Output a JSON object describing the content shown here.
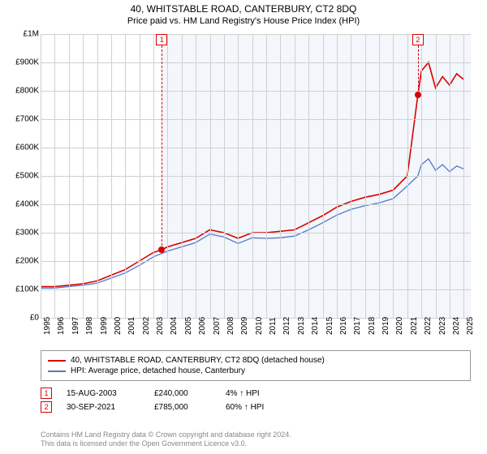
{
  "title": "40, WHITSTABLE ROAD, CANTERBURY, CT2 8DQ",
  "subtitle": "Price paid vs. HM Land Registry's House Price Index (HPI)",
  "chart": {
    "type": "line",
    "background_color": "#ffffff",
    "shade_color": "#f3f6fb",
    "grid_color": "#d0d0d0",
    "xlim": [
      1995,
      2025.5
    ],
    "ylim": [
      0,
      1000000
    ],
    "ytick_step": 100000,
    "yticks": [
      "£0",
      "£100K",
      "£200K",
      "£300K",
      "£400K",
      "£500K",
      "£600K",
      "£700K",
      "£800K",
      "£900K",
      "£1M"
    ],
    "xticks": [
      1995,
      1996,
      1997,
      1998,
      1999,
      2000,
      2001,
      2002,
      2003,
      2004,
      2005,
      2006,
      2007,
      2008,
      2009,
      2010,
      2011,
      2012,
      2013,
      2014,
      2015,
      2016,
      2017,
      2018,
      2019,
      2020,
      2021,
      2022,
      2023,
      2024,
      2025
    ],
    "shade_start_x": 2003.6,
    "series": [
      {
        "name": "property",
        "label": "40, WHITSTABLE ROAD, CANTERBURY, CT2 8DQ (detached house)",
        "color": "#d80000",
        "line_width": 1.6,
        "data": [
          [
            1995,
            110000
          ],
          [
            1996,
            110000
          ],
          [
            1997,
            115000
          ],
          [
            1998,
            120000
          ],
          [
            1999,
            130000
          ],
          [
            2000,
            150000
          ],
          [
            2001,
            170000
          ],
          [
            2002,
            200000
          ],
          [
            2003,
            230000
          ],
          [
            2003.6,
            240000
          ],
          [
            2004,
            250000
          ],
          [
            2005,
            265000
          ],
          [
            2006,
            280000
          ],
          [
            2007,
            310000
          ],
          [
            2008,
            300000
          ],
          [
            2009,
            280000
          ],
          [
            2010,
            300000
          ],
          [
            2011,
            300000
          ],
          [
            2012,
            305000
          ],
          [
            2013,
            310000
          ],
          [
            2014,
            335000
          ],
          [
            2015,
            360000
          ],
          [
            2016,
            390000
          ],
          [
            2017,
            410000
          ],
          [
            2018,
            425000
          ],
          [
            2019,
            435000
          ],
          [
            2020,
            450000
          ],
          [
            2021,
            500000
          ],
          [
            2021.75,
            785000
          ],
          [
            2022,
            870000
          ],
          [
            2022.5,
            900000
          ],
          [
            2023,
            810000
          ],
          [
            2023.5,
            850000
          ],
          [
            2024,
            820000
          ],
          [
            2024.5,
            860000
          ],
          [
            2025,
            840000
          ]
        ]
      },
      {
        "name": "hpi",
        "label": "HPI: Average price, detached house, Canterbury",
        "color": "#5078c8",
        "line_width": 1.3,
        "data": [
          [
            1995,
            105000
          ],
          [
            1996,
            105000
          ],
          [
            1997,
            110000
          ],
          [
            1998,
            115000
          ],
          [
            1999,
            122000
          ],
          [
            2000,
            140000
          ],
          [
            2001,
            158000
          ],
          [
            2002,
            185000
          ],
          [
            2003,
            215000
          ],
          [
            2004,
            235000
          ],
          [
            2005,
            250000
          ],
          [
            2006,
            265000
          ],
          [
            2007,
            295000
          ],
          [
            2008,
            285000
          ],
          [
            2009,
            262000
          ],
          [
            2010,
            282000
          ],
          [
            2011,
            280000
          ],
          [
            2012,
            282000
          ],
          [
            2013,
            288000
          ],
          [
            2014,
            310000
          ],
          [
            2015,
            335000
          ],
          [
            2016,
            362000
          ],
          [
            2017,
            382000
          ],
          [
            2018,
            395000
          ],
          [
            2019,
            405000
          ],
          [
            2020,
            420000
          ],
          [
            2021,
            465000
          ],
          [
            2021.75,
            500000
          ],
          [
            2022,
            540000
          ],
          [
            2022.5,
            560000
          ],
          [
            2023,
            520000
          ],
          [
            2023.5,
            540000
          ],
          [
            2024,
            515000
          ],
          [
            2024.5,
            535000
          ],
          [
            2025,
            525000
          ]
        ]
      }
    ],
    "markers": [
      {
        "id": "1",
        "x": 2003.6,
        "y": 240000
      },
      {
        "id": "2",
        "x": 2021.75,
        "y": 785000
      }
    ]
  },
  "legend": {
    "rows": [
      {
        "color": "#d80000",
        "label": "40, WHITSTABLE ROAD, CANTERBURY, CT2 8DQ (detached house)"
      },
      {
        "color": "#5078c8",
        "label": "HPI: Average price, detached house, Canterbury"
      }
    ]
  },
  "transactions": [
    {
      "id": "1",
      "date": "15-AUG-2003",
      "price": "£240,000",
      "pct": "4% ↑ HPI"
    },
    {
      "id": "2",
      "date": "30-SEP-2021",
      "price": "£785,000",
      "pct": "60% ↑ HPI"
    }
  ],
  "footer": {
    "line1": "Contains HM Land Registry data © Crown copyright and database right 2024.",
    "line2": "This data is licensed under the Open Government Licence v3.0."
  },
  "fonts": {
    "title_size": 12,
    "subtitle_size": 11,
    "tick_size": 10,
    "legend_size": 10,
    "footer_size": 9
  }
}
